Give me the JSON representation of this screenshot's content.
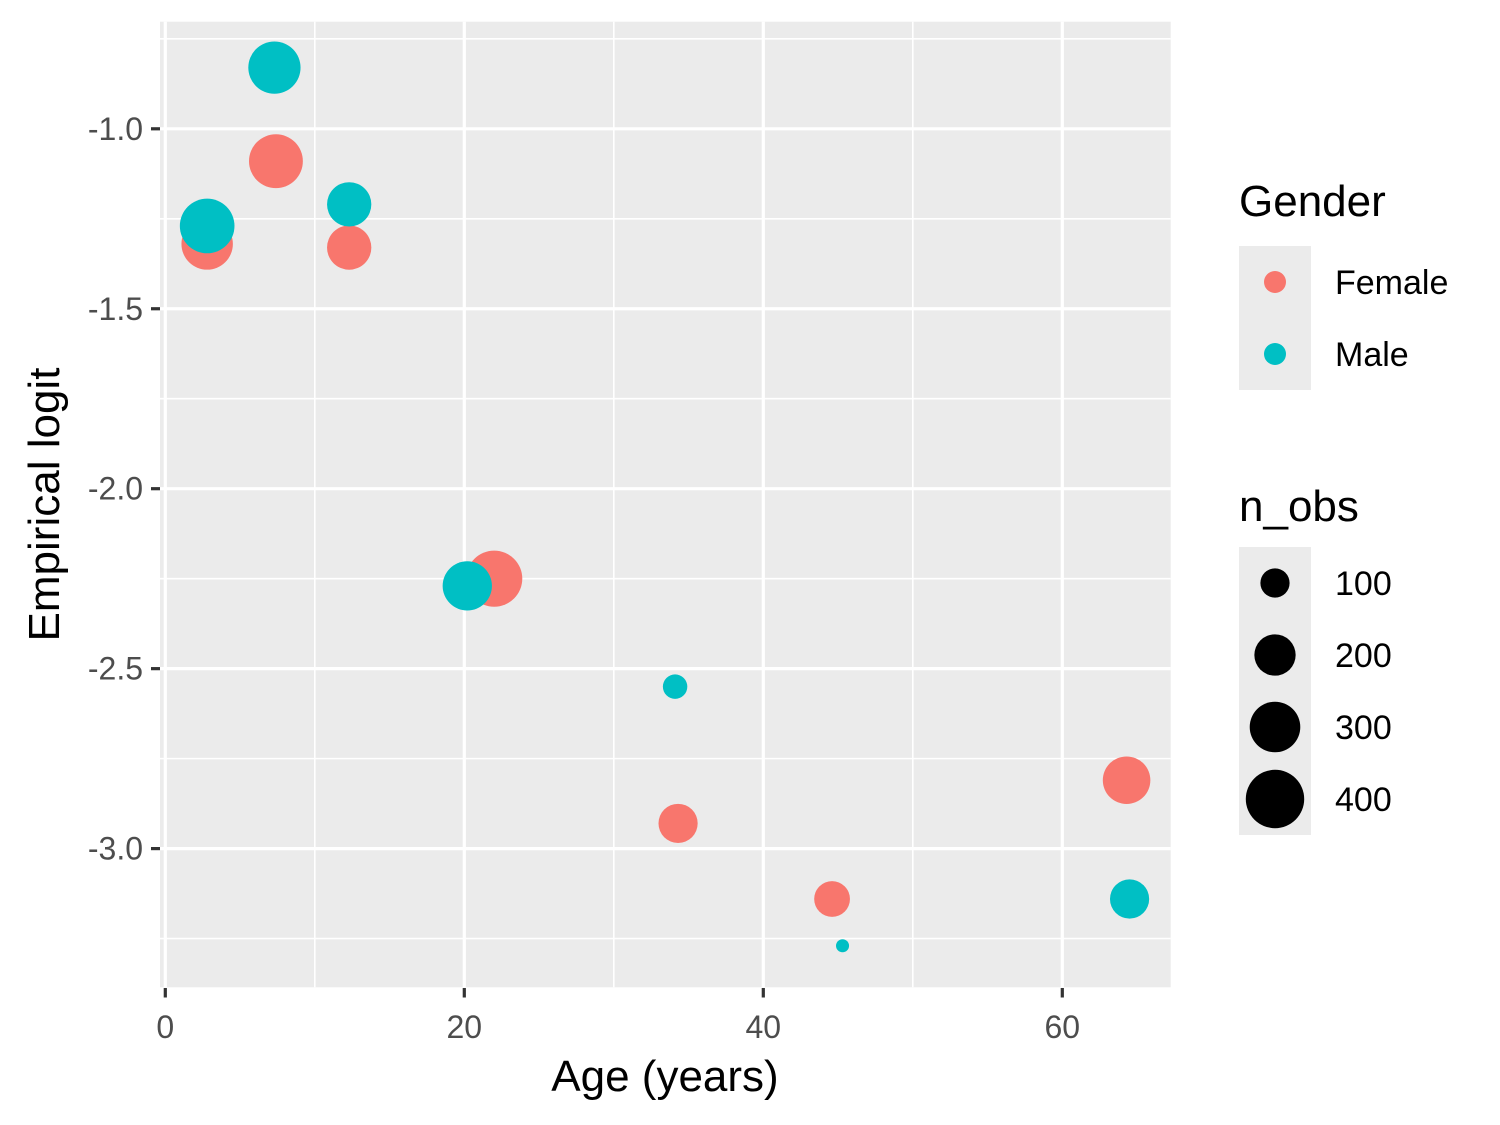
{
  "chart_data": {
    "type": "scatter",
    "title": "",
    "xlabel": "Age (years)",
    "ylabel": "Empirical logit",
    "x_ticks": [
      0,
      20,
      40,
      60
    ],
    "x_tick_labels": [
      "0",
      "20",
      "40",
      "60"
    ],
    "x_minor_ticks": [
      10,
      30,
      50
    ],
    "y_ticks": [
      -1.0,
      -1.5,
      -2.0,
      -2.5,
      -3.0
    ],
    "y_tick_labels": [
      "-1.0",
      "-1.5",
      "-2.0",
      "-2.5",
      "-3.0"
    ],
    "y_minor_ticks": [
      -0.75,
      -1.25,
      -1.75,
      -2.25,
      -2.75,
      -3.25
    ],
    "xlim": [
      -0.3,
      67.3
    ],
    "ylim": [
      -3.39,
      -0.7
    ],
    "grid": true,
    "legend_position": "right",
    "series": [
      {
        "name": "Female",
        "color": "#F8766D",
        "points": [
          {
            "age": 2.8,
            "logit": -1.32,
            "n_obs": 310
          },
          {
            "age": 7.4,
            "logit": -1.09,
            "n_obs": 340
          },
          {
            "age": 12.3,
            "logit": -1.33,
            "n_obs": 230
          },
          {
            "age": 22.0,
            "logit": -2.25,
            "n_obs": 370
          },
          {
            "age": 34.3,
            "logit": -2.93,
            "n_obs": 180
          },
          {
            "age": 44.6,
            "logit": -3.14,
            "n_obs": 150
          },
          {
            "age": 64.3,
            "logit": -2.81,
            "n_obs": 265
          }
        ]
      },
      {
        "name": "Male",
        "color": "#00BFC4",
        "points": [
          {
            "age": 2.8,
            "logit": -1.27,
            "n_obs": 350
          },
          {
            "age": 7.3,
            "logit": -0.83,
            "n_obs": 320
          },
          {
            "age": 12.3,
            "logit": -1.21,
            "n_obs": 230
          },
          {
            "age": 20.2,
            "logit": -2.27,
            "n_obs": 285
          },
          {
            "age": 34.1,
            "logit": -2.55,
            "n_obs": 70
          },
          {
            "age": 45.3,
            "logit": -3.27,
            "n_obs": 20
          },
          {
            "age": 64.5,
            "logit": -3.14,
            "n_obs": 180
          }
        ]
      }
    ],
    "color_legend": {
      "title": "Gender",
      "entries": [
        {
          "label": "Female",
          "color": "#F8766D"
        },
        {
          "label": "Male",
          "color": "#00BFC4"
        }
      ]
    },
    "size_legend": {
      "title": "n_obs",
      "values": [
        100,
        200,
        300,
        400
      ],
      "labels": [
        "100",
        "200",
        "300",
        "400"
      ]
    }
  },
  "colors": {
    "panel_bg": "#EBEBEB",
    "grid": "#FFFFFF",
    "tick": "#333333",
    "tick_label": "#4D4D4D",
    "text": "#000000",
    "legend_key_bg": "#EBEBEB",
    "size_dot": "#000000"
  }
}
